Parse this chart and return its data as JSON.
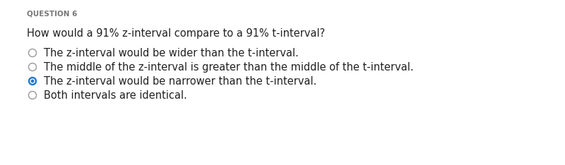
{
  "title": "QUESTION 6",
  "question": "How would a 91% z-interval compare to a 91% t-interval?",
  "options": [
    "The z-interval would be wider than the t-interval.",
    "The middle of the z-interval is greater than the middle of the t-interval.",
    "The z-interval would be narrower than the t-interval.",
    "Both intervals are identical."
  ],
  "selected": 2,
  "background_color": "#ffffff",
  "title_color": "#777777",
  "question_color": "#222222",
  "option_color": "#222222",
  "selected_text_color": "#222222",
  "title_fontsize": 7.5,
  "question_fontsize": 10.5,
  "option_fontsize": 10.5,
  "radio_unselected_edgecolor": "#999999",
  "radio_selected_fill": "#2677d4",
  "radio_selected_edge": "#2677d4"
}
